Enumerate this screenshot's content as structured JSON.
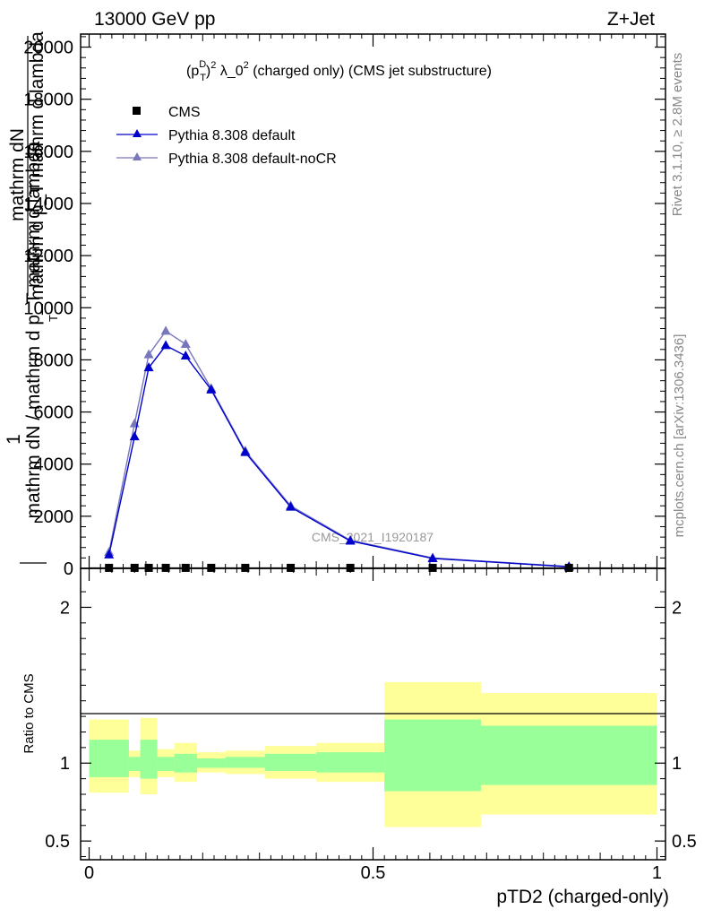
{
  "header": {
    "left": "13000 GeV pp",
    "right": "Z+Jet"
  },
  "plot_title": "(p_T^D)^2 λ_0^2 (charged only) (CMS jet substructure)",
  "title_parts": {
    "p": "(p",
    "sup_d": "D",
    "sub_t": "T",
    "close": ")",
    "sup_2a": "2",
    "lambda": " λ_0",
    "sup_2b": "2",
    "rest": " (charged only) (CMS jet substructure)"
  },
  "y_axis_label": {
    "one": "1",
    "frac_numerator": "mathrm dN",
    "frac_denominator": "mathrm d p_T mathrm d lambda",
    "main": "mathrm dN / mathrm d p_T mathrm d lambda",
    "sub_t": "T"
  },
  "x_axis_label": "pTD2 (charged-only)",
  "ratio_y_label": "Ratio to CMS",
  "side_labels": {
    "rivet": "Rivet 3.1.10, ≥ 2.8M events",
    "mcplots": "mcplots.cern.ch [arXiv:1306.3436]"
  },
  "watermark": "CMS_2021_I1920187",
  "legend": [
    {
      "label": "CMS",
      "marker": "square",
      "color": "#000000"
    },
    {
      "label": "Pythia 8.308 default",
      "marker": "triangle",
      "color": "#0000cc"
    },
    {
      "label": "Pythia 8.308 default-noCR",
      "marker": "triangle",
      "color": "#7777bb"
    }
  ],
  "chart_data": {
    "type": "line",
    "x_range": [
      -0.015,
      1.015
    ],
    "main_ylim": [
      0,
      20500
    ],
    "main_yticks": [
      0,
      2000,
      4000,
      6000,
      8000,
      10000,
      12000,
      14000,
      16000,
      18000,
      20000
    ],
    "main_ytick_labels": [
      "0",
      "2000",
      "4000",
      "6000",
      "8000",
      "10000",
      "12000",
      "14000",
      "16000",
      "18000",
      "20000"
    ],
    "xticks": [
      0,
      0.5,
      1
    ],
    "xtick_labels": [
      "0",
      "0.5",
      "1"
    ],
    "ratio_ylim": [
      0.38,
      2.25
    ],
    "ratio_yticks": [
      0.5,
      1,
      2
    ],
    "ratio_ytick_labels": [
      "0.5",
      "1",
      "2"
    ],
    "cms": {
      "name": "CMS",
      "bins": [
        [
          0,
          0.07
        ],
        [
          0.07,
          0.09
        ],
        [
          0.09,
          0.12
        ],
        [
          0.12,
          0.15
        ],
        [
          0.15,
          0.19
        ],
        [
          0.19,
          0.24
        ],
        [
          0.24,
          0.31
        ],
        [
          0.31,
          0.4
        ],
        [
          0.4,
          0.52
        ],
        [
          0.52,
          0.69
        ],
        [
          0.69,
          1.0
        ]
      ],
      "x": [
        0.035,
        0.08,
        0.105,
        0.135,
        0.17,
        0.215,
        0.275,
        0.355,
        0.46,
        0.605,
        0.845
      ],
      "y": [
        20,
        20,
        20,
        20,
        20,
        20,
        20,
        20,
        20,
        20,
        20
      ]
    },
    "series": [
      {
        "name": "Pythia 8.308 default",
        "color": "#0000cc",
        "x": [
          0.035,
          0.08,
          0.105,
          0.135,
          0.17,
          0.215,
          0.275,
          0.355,
          0.46,
          0.605,
          0.845
        ],
        "y": [
          520,
          5050,
          7700,
          8550,
          8150,
          6850,
          4450,
          2350,
          1050,
          380,
          60
        ]
      },
      {
        "name": "Pythia 8.308 default-noCR",
        "color": "#7777bb",
        "x": [
          0.035,
          0.08,
          0.105,
          0.135,
          0.17,
          0.215,
          0.275,
          0.355,
          0.46,
          0.605,
          0.845
        ],
        "y": [
          620,
          5550,
          8200,
          9100,
          8600,
          6900,
          4500,
          2400,
          1080,
          400,
          70
        ]
      }
    ],
    "ratio_bands": {
      "outer": [
        [
          0.81,
          1.28
        ],
        [
          0.91,
          1.08
        ],
        [
          0.8,
          1.29
        ],
        [
          0.91,
          1.09
        ],
        [
          0.88,
          1.13
        ],
        [
          0.94,
          1.07
        ],
        [
          0.93,
          1.08
        ],
        [
          0.9,
          1.11
        ],
        [
          0.88,
          1.13
        ],
        [
          0.59,
          1.52
        ],
        [
          0.67,
          1.45
        ]
      ],
      "inner": [
        [
          0.91,
          1.15
        ],
        [
          0.95,
          1.04
        ],
        [
          0.9,
          1.15
        ],
        [
          0.95,
          1.04
        ],
        [
          0.94,
          1.06
        ],
        [
          0.97,
          1.03
        ],
        [
          0.97,
          1.04
        ],
        [
          0.95,
          1.06
        ],
        [
          0.94,
          1.07
        ],
        [
          0.82,
          1.28
        ],
        [
          0.86,
          1.24
        ]
      ],
      "outer_color": "#ffff99",
      "inner_color": "#99ff99"
    }
  }
}
